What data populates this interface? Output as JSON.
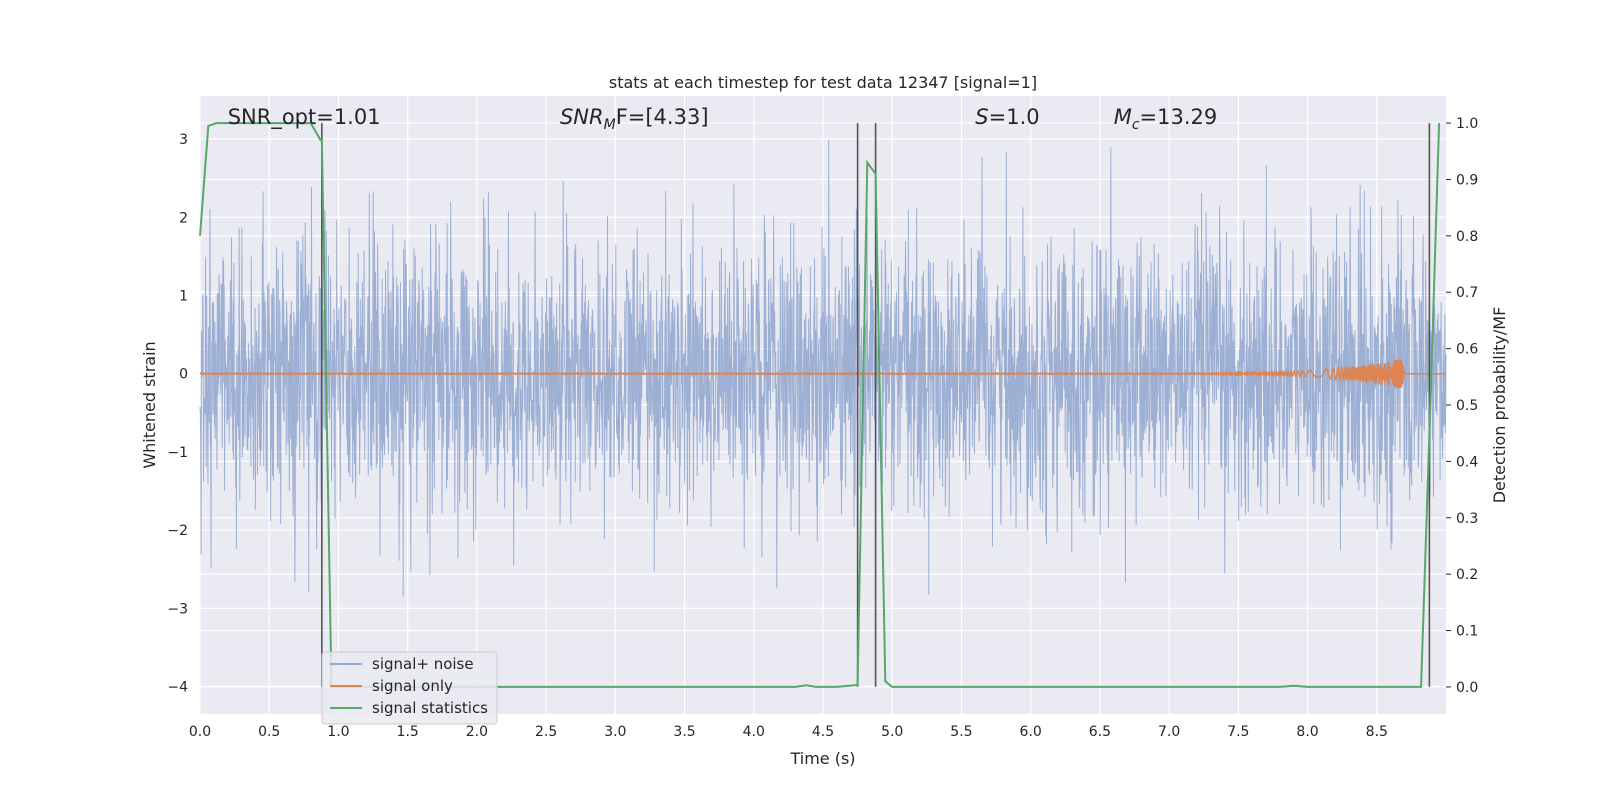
{
  "chart_data": {
    "type": "line",
    "title": "stats at each timestep for test data 12347 [signal=1]",
    "xlabel": "Time (s)",
    "ylabel": "Whitened strain",
    "y2label": "Detection probability/MF",
    "xlim": [
      0.0,
      9.0
    ],
    "ylim": [
      -4.35,
      3.55
    ],
    "y2lim": [
      -0.048,
      1.048
    ],
    "xticks": [
      "0.0",
      "0.5",
      "1.0",
      "1.5",
      "2.0",
      "2.5",
      "3.0",
      "3.5",
      "4.0",
      "4.5",
      "5.0",
      "5.5",
      "6.0",
      "6.5",
      "7.0",
      "7.5",
      "8.0",
      "8.5"
    ],
    "yticks": [
      "3",
      "2",
      "1",
      "0",
      "−1",
      "−2",
      "−3",
      "−4"
    ],
    "y2ticks": [
      "1.0",
      "0.9",
      "0.8",
      "0.7",
      "0.6",
      "0.5",
      "0.4",
      "0.3",
      "0.2",
      "0.1",
      "0.0"
    ],
    "grid": true,
    "legend_position": "lower-left",
    "annotations": [
      {
        "text": "SNR_opt=1.01",
        "x": 0.2
      },
      {
        "text_main": "SNR",
        "text_sub": "M",
        "text_rest": "F=[4.33]",
        "x": 2.6
      },
      {
        "text_main": "S",
        "text_rest": "=1.0",
        "x": 5.6
      },
      {
        "text_main": "M",
        "text_sub": "c",
        "text_rest": "=13.29",
        "x": 6.6
      }
    ],
    "vlines": [
      0.88,
      4.75,
      4.88,
      8.88
    ],
    "series": [
      {
        "name": "signal+ noise",
        "color": "#8fa6cf",
        "description_only": false,
        "noise": {
          "sigma": 0.85,
          "min": -3.6,
          "max": 3.2
        }
      },
      {
        "name": "signal only",
        "color": "#dd8452",
        "chirp": {
          "start": 7.3,
          "peak": 8.68,
          "amplitude": 0.18
        }
      },
      {
        "name": "signal statistics",
        "color": "#55a868",
        "x": [
          0.0,
          0.06,
          0.12,
          0.2,
          0.4,
          0.6,
          0.8,
          0.87,
          0.88,
          0.95,
          1.0,
          2.0,
          3.0,
          4.0,
          4.3,
          4.38,
          4.45,
          4.6,
          4.73,
          4.75,
          4.82,
          4.88,
          4.95,
          5.0,
          6.0,
          7.0,
          7.8,
          7.9,
          8.0,
          8.5,
          8.82,
          8.9,
          8.95
        ],
        "y": [
          0.8,
          0.995,
          1.0,
          1.0,
          1.0,
          1.0,
          1.0,
          0.97,
          0.97,
          0.0,
          0.0,
          0.0,
          0.0,
          0.0,
          0.0,
          0.003,
          0.0,
          0.0,
          0.003,
          0.003,
          0.93,
          0.91,
          0.01,
          0.0,
          0.0,
          0.0,
          0.0,
          0.002,
          0.0,
          0.0,
          0.0,
          0.6,
          1.0
        ]
      }
    ]
  }
}
